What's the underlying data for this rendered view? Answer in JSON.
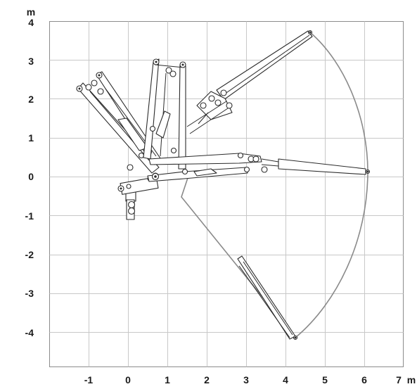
{
  "diagram": {
    "y_unit": "m",
    "x_unit": "m",
    "x_ticks": [
      "-1",
      "0",
      "1",
      "2",
      "3",
      "4",
      "5",
      "6",
      "7"
    ],
    "y_ticks": [
      "4",
      "3",
      "2",
      "1",
      "0",
      "-1",
      "-2",
      "-3",
      "-4"
    ],
    "x_range": [
      -2,
      7
    ],
    "y_range": [
      -5,
      4
    ],
    "grid": true
  }
}
